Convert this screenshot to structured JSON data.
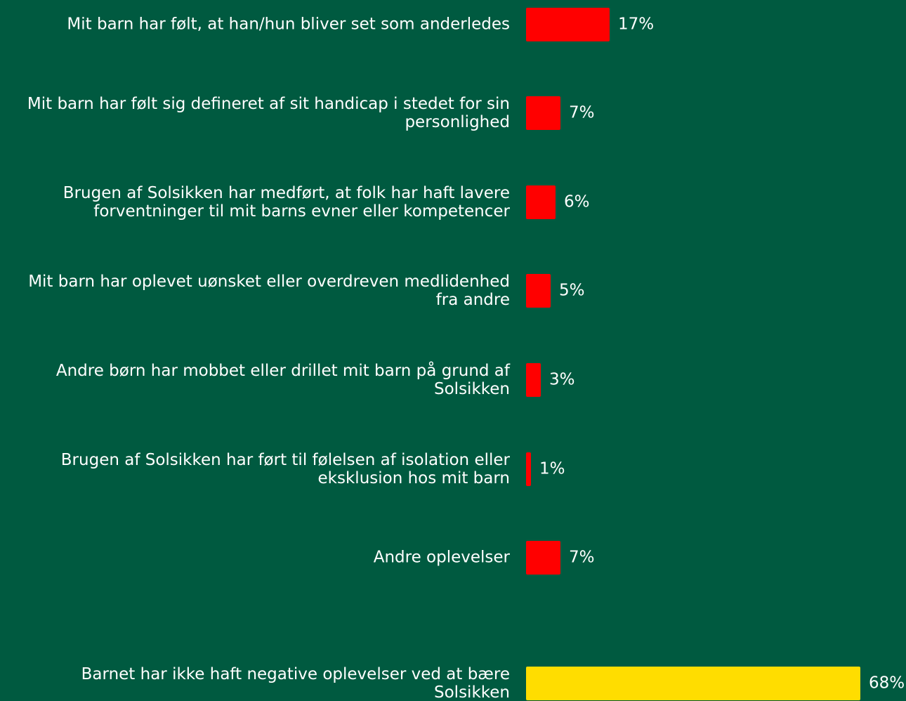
{
  "chart_data": {
    "type": "bar",
    "categories": [
      "Mit barn har følt, at han/hun bliver set som anderledes",
      "Mit barn har følt sig defineret af sit handicap i stedet for sin personlighed",
      "Brugen af Solsikken har medført, at folk har haft lavere forventninger til mit barns evner eller kompetencer",
      "Mit barn har oplevet uønsket eller overdreven medlidenhed fra andre",
      "Andre børn har mobbet eller drillet mit barn på grund af Solsikken",
      "Brugen af Solsikken har ført til følelsen af isolation eller eksklusion hos mit barn",
      "Andre oplevelser",
      "Barnet har ikke haft negative oplevelser ved at bære Solsikken"
    ],
    "values": [
      17,
      7,
      6,
      5,
      3,
      1,
      7,
      68
    ],
    "value_labels": [
      "17%",
      "7%",
      "6%",
      "5%",
      "3%",
      "1%",
      "7%",
      "68%"
    ],
    "colors": [
      "#ff0000",
      "#ff0000",
      "#ff0000",
      "#ff0000",
      "#ff0000",
      "#ff0000",
      "#ff0000",
      "#ffdd00"
    ]
  }
}
